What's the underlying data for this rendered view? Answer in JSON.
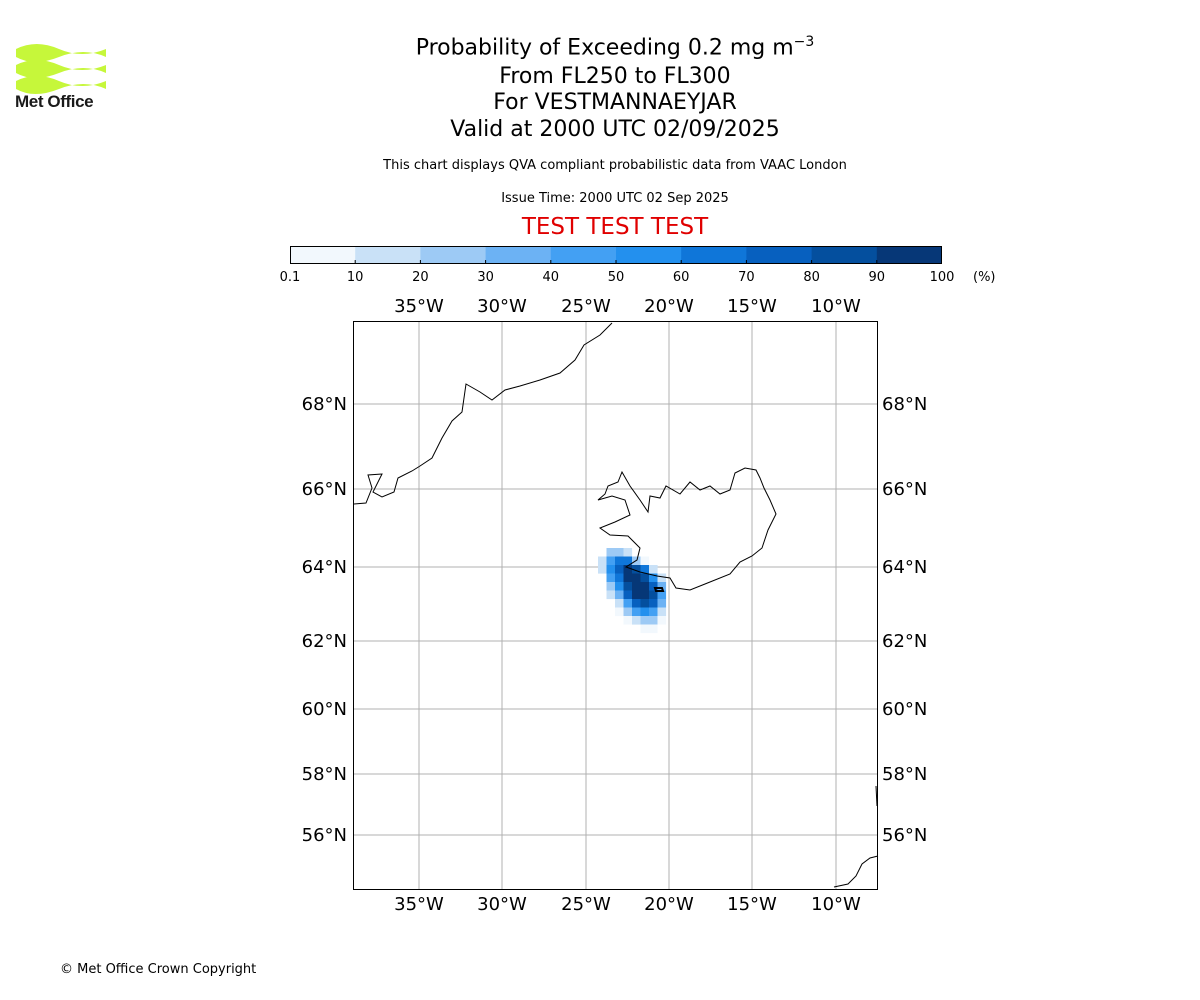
{
  "header": {
    "title_prefix": "Probability of Exceeding 0.2 mg m",
    "title_exponent": "−3",
    "level_range": "From FL250 to FL300",
    "location": "For VESTMANNAEYJAR",
    "valid_time": "Valid at 2000 UTC 02/09/2025",
    "description": "This chart displays QVA compliant probabilistic data from VAAC London",
    "issue_time": "Issue Time: 2000 UTC 02 Sep 2025",
    "test_banner": "TEST TEST TEST"
  },
  "logo": {
    "text": "Met Office",
    "color": "#c6f73a"
  },
  "colorbar": {
    "ticks": [
      "0.1",
      "10",
      "20",
      "30",
      "40",
      "50",
      "60",
      "70",
      "80",
      "90",
      "100"
    ],
    "unit": "(%)",
    "colors": [
      "#f2f8fd",
      "#c9e1f7",
      "#9dcaf5",
      "#6cb2f4",
      "#43a0f3",
      "#2390ee",
      "#0f76d9",
      "#0760bf",
      "#044f9e",
      "#063777"
    ]
  },
  "map": {
    "lon_labels": [
      "35°W",
      "30°W",
      "25°W",
      "20°W",
      "15°W",
      "10°W"
    ],
    "lat_labels": [
      "68°N",
      "66°N",
      "64°N",
      "62°N",
      "60°N",
      "58°N",
      "56°N"
    ],
    "grid": true
  },
  "footer": {
    "copyright": "© Met Office Crown Copyright"
  }
}
